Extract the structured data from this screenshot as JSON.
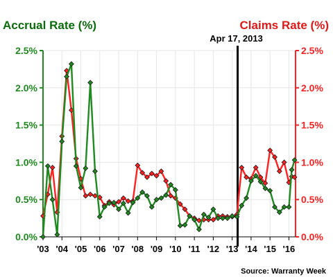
{
  "colors": {
    "accrual": "#1f8a1f",
    "accrual_title": "#0a6b0a",
    "claims": "#ff2020",
    "claims_title": "#e01818",
    "grid": "#e6e6e6",
    "marker_line": "#000000"
  },
  "chart_data": {
    "type": "line",
    "title_left": "Accrual Rate (%)",
    "title_right": "Claims Rate (%)",
    "source": "Source: Warranty Week",
    "annotation": {
      "label": "Apr 17, 2013",
      "x": 2013.29
    },
    "x_range": [
      2003,
      2016.35
    ],
    "y_left": {
      "min": 0,
      "max": 2.5,
      "ticks": [
        "0.0%",
        "0.5%",
        "1.0%",
        "1.5%",
        "2.0%",
        "2.5%"
      ]
    },
    "y_right": {
      "min": 0,
      "max": 2.5,
      "ticks": [
        "0.0%",
        "0.5%",
        "1.0%",
        "1.5%",
        "2.0%",
        "2.5%"
      ]
    },
    "x_ticks": [
      {
        "label": "'03",
        "value": 2003
      },
      {
        "label": "'04",
        "value": 2004
      },
      {
        "label": "'05",
        "value": 2005
      },
      {
        "label": "'06",
        "value": 2006
      },
      {
        "label": "'07",
        "value": 2007
      },
      {
        "label": "'08",
        "value": 2008
      },
      {
        "label": "'09",
        "value": 2009
      },
      {
        "label": "'10",
        "value": 2010
      },
      {
        "label": "'11",
        "value": 2011
      },
      {
        "label": "'12",
        "value": 2012
      },
      {
        "label": "'13",
        "value": 2013
      },
      {
        "label": "'14",
        "value": 2014
      },
      {
        "label": "'15",
        "value": 2015
      },
      {
        "label": "'16",
        "value": 2016
      }
    ],
    "grid": true,
    "series": [
      {
        "name": "Accrual Rate",
        "axis": "left",
        "points": [
          [
            2003.0,
            0.0
          ],
          [
            2003.25,
            0.95
          ],
          [
            2003.5,
            0.5
          ],
          [
            2003.75,
            0.03
          ],
          [
            2004.0,
            1.28
          ],
          [
            2004.25,
            2.15
          ],
          [
            2004.5,
            2.32
          ],
          [
            2004.75,
            0.95
          ],
          [
            2005.0,
            0.66
          ],
          [
            2005.25,
            0.92
          ],
          [
            2005.5,
            2.07
          ],
          [
            2005.75,
            0.88
          ],
          [
            2006.0,
            0.27
          ],
          [
            2006.25,
            0.4
          ],
          [
            2006.5,
            0.45
          ],
          [
            2006.75,
            0.46
          ],
          [
            2007.0,
            0.37
          ],
          [
            2007.25,
            0.45
          ],
          [
            2007.5,
            0.32
          ],
          [
            2007.75,
            0.46
          ],
          [
            2008.0,
            0.52
          ],
          [
            2008.25,
            0.6
          ],
          [
            2008.5,
            0.55
          ],
          [
            2008.75,
            0.4
          ],
          [
            2009.0,
            0.5
          ],
          [
            2009.25,
            0.52
          ],
          [
            2009.5,
            0.56
          ],
          [
            2009.75,
            0.7
          ],
          [
            2010.0,
            0.63
          ],
          [
            2010.25,
            0.15
          ],
          [
            2010.5,
            0.16
          ],
          [
            2010.75,
            0.28
          ],
          [
            2011.0,
            0.23
          ],
          [
            2011.25,
            0.1
          ],
          [
            2011.5,
            0.3
          ],
          [
            2011.75,
            0.26
          ],
          [
            2012.0,
            0.37
          ],
          [
            2012.25,
            0.25
          ],
          [
            2012.5,
            0.25
          ],
          [
            2012.75,
            0.25
          ],
          [
            2013.0,
            0.28
          ],
          [
            2013.25,
            0.27
          ],
          [
            2013.5,
            0.42
          ],
          [
            2013.75,
            0.52
          ],
          [
            2014.0,
            0.75
          ],
          [
            2014.25,
            0.82
          ],
          [
            2014.5,
            0.74
          ],
          [
            2014.75,
            0.65
          ],
          [
            2015.0,
            0.62
          ],
          [
            2015.25,
            0.4
          ],
          [
            2015.5,
            0.33
          ],
          [
            2015.75,
            0.4
          ],
          [
            2016.0,
            0.4
          ],
          [
            2016.15,
            0.9
          ],
          [
            2016.3,
            1.03
          ]
        ]
      },
      {
        "name": "Claims Rate",
        "axis": "right",
        "points": [
          [
            2003.0,
            0.28
          ],
          [
            2003.25,
            0.57
          ],
          [
            2003.5,
            0.93
          ],
          [
            2003.75,
            0.33
          ],
          [
            2004.0,
            1.35
          ],
          [
            2004.25,
            2.23
          ],
          [
            2004.5,
            1.7
          ],
          [
            2004.75,
            1.05
          ],
          [
            2005.0,
            0.78
          ],
          [
            2005.25,
            0.55
          ],
          [
            2005.5,
            0.57
          ],
          [
            2005.75,
            0.55
          ],
          [
            2006.0,
            0.53
          ],
          [
            2006.25,
            0.42
          ],
          [
            2006.5,
            0.47
          ],
          [
            2006.75,
            0.43
          ],
          [
            2007.0,
            0.47
          ],
          [
            2007.25,
            0.52
          ],
          [
            2007.5,
            0.48
          ],
          [
            2007.75,
            0.48
          ],
          [
            2008.0,
            0.96
          ],
          [
            2008.25,
            0.86
          ],
          [
            2008.5,
            0.8
          ],
          [
            2008.75,
            0.85
          ],
          [
            2009.0,
            0.82
          ],
          [
            2009.25,
            0.88
          ],
          [
            2009.5,
            0.75
          ],
          [
            2009.75,
            0.55
          ],
          [
            2010.0,
            0.52
          ],
          [
            2010.25,
            0.44
          ],
          [
            2010.5,
            0.37
          ],
          [
            2010.75,
            0.28
          ],
          [
            2011.0,
            0.25
          ],
          [
            2011.25,
            0.22
          ],
          [
            2011.5,
            0.23
          ],
          [
            2011.75,
            0.23
          ],
          [
            2012.0,
            0.23
          ],
          [
            2012.25,
            0.28
          ],
          [
            2012.5,
            0.28
          ],
          [
            2012.75,
            0.27
          ],
          [
            2013.0,
            0.27
          ],
          [
            2013.25,
            0.3
          ],
          [
            2013.5,
            0.93
          ],
          [
            2013.75,
            0.8
          ],
          [
            2014.0,
            0.78
          ],
          [
            2014.25,
            0.93
          ],
          [
            2014.5,
            0.8
          ],
          [
            2014.75,
            0.72
          ],
          [
            2015.0,
            1.16
          ],
          [
            2015.25,
            1.07
          ],
          [
            2015.5,
            0.88
          ],
          [
            2015.75,
            1.0
          ],
          [
            2016.0,
            0.73
          ],
          [
            2016.15,
            0.81
          ],
          [
            2016.3,
            0.8
          ]
        ]
      }
    ]
  }
}
